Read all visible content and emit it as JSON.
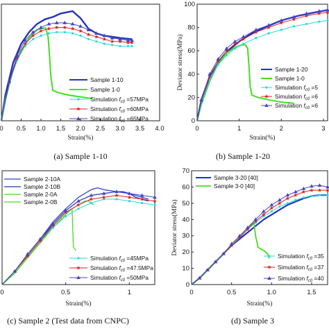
{
  "figure": {
    "colors": {
      "blue": "#2233bb",
      "blue2": "#3344cc",
      "green": "#44dd22",
      "cyan": "#22dddd",
      "red": "#dd2222",
      "violet": "#4444cc"
    }
  },
  "chart_data": [
    {
      "type": "line",
      "caption": "(a) Sample 1-10",
      "xlabel": "Strain(%)",
      "ylabel": "",
      "xlim": [
        0,
        4.0
      ],
      "ylim": [
        0,
        100
      ],
      "x_ticks": [
        "0",
        "0.5",
        "1.0",
        "1.5",
        "2.0",
        "2.5",
        "3.0",
        "3.5",
        "4.0"
      ],
      "y_ticks": [],
      "legend": "bottom-right",
      "series": [
        {
          "name": "Sample 1-10",
          "color": "#2233bb",
          "marker": "none",
          "width": 2.4,
          "x": [
            0,
            0.1,
            0.3,
            0.5,
            0.7,
            0.9,
            1.1,
            1.3,
            1.5,
            1.8,
            2.0,
            2.2,
            2.4,
            2.6,
            2.8,
            3.0,
            3.3
          ],
          "y": [
            0,
            22,
            50,
            66,
            76,
            83,
            87,
            89,
            92,
            94,
            88,
            79,
            75,
            73,
            72,
            71,
            70
          ]
        },
        {
          "name": "Sample 1-0",
          "color": "#44dd22",
          "marker": "none",
          "width": 2,
          "x": [
            0,
            0.1,
            0.3,
            0.5,
            0.7,
            0.9,
            1.0,
            1.12,
            1.18,
            1.22,
            1.25,
            1.3,
            1.45,
            1.7,
            2.0,
            2.3
          ],
          "y": [
            0,
            18,
            44,
            60,
            71,
            78,
            79,
            79.5,
            72,
            55,
            38,
            26,
            24,
            22,
            20.5,
            19
          ]
        },
        {
          "name": "Simulation f c0 =57MPa",
          "color": "#22dddd",
          "marker": "dot",
          "width": 1,
          "x": [
            0,
            0.2,
            0.4,
            0.6,
            0.8,
            1.0,
            1.2,
            1.4,
            1.6,
            1.8,
            2.0,
            2.2,
            2.4,
            2.6,
            2.8,
            3.0,
            3.2,
            3.3
          ],
          "y": [
            0,
            32,
            52,
            64,
            70,
            73,
            75,
            76,
            76,
            75,
            73,
            70,
            68,
            66,
            65,
            64,
            64,
            64
          ]
        },
        {
          "name": "Simulation f c0 =60MPa",
          "color": "#dd2222",
          "marker": "star",
          "width": 1,
          "x": [
            0,
            0.2,
            0.4,
            0.6,
            0.8,
            1.0,
            1.2,
            1.4,
            1.6,
            1.8,
            2.0,
            2.2,
            2.4,
            2.6,
            2.8,
            3.0,
            3.2,
            3.3
          ],
          "y": [
            0,
            33,
            54,
            66,
            73,
            77,
            79,
            80,
            80,
            79,
            77,
            74,
            72,
            70,
            68,
            68,
            67,
            67
          ]
        },
        {
          "name": "Simulation f c0 =65MPa",
          "color": "#4444cc",
          "marker": "triangle",
          "width": 1,
          "x": [
            0,
            0.2,
            0.4,
            0.6,
            0.8,
            1.0,
            1.2,
            1.4,
            1.6,
            1.8,
            2.0,
            2.2,
            2.4,
            2.6,
            2.8,
            3.0,
            3.2,
            3.3
          ],
          "y": [
            0,
            34,
            56,
            69,
            76,
            80,
            83,
            84,
            84,
            83,
            81,
            78,
            75,
            73,
            71,
            70,
            69,
            69
          ]
        }
      ]
    },
    {
      "type": "line",
      "caption": "(b) Sample 1-20",
      "xlabel": "Strain(%)",
      "ylabel": "Deviator stress(MPa)",
      "xlim": [
        0,
        3.1
      ],
      "ylim": [
        0,
        100
      ],
      "x_ticks": [
        "0",
        "1",
        "2",
        "3"
      ],
      "x_tick_values": [
        0,
        1,
        2,
        3
      ],
      "y_ticks": [
        "0",
        "20",
        "40",
        "60",
        "80",
        "100"
      ],
      "legend": "bottom-right",
      "series": [
        {
          "name": "Sample 1-20",
          "color": "#2233bb",
          "marker": "none",
          "width": 2.4,
          "x": [
            0,
            0.1,
            0.3,
            0.5,
            0.8,
            1.0,
            1.3,
            1.6,
            2.0,
            2.4,
            2.8,
            3.1
          ],
          "y": [
            0,
            18,
            38,
            50,
            62,
            68,
            75,
            80,
            86,
            90,
            93,
            95
          ]
        },
        {
          "name": "Sample 1-0",
          "color": "#44dd22",
          "marker": "none",
          "width": 2,
          "x": [
            0,
            0.1,
            0.3,
            0.5,
            0.7,
            0.9,
            1.05,
            1.15,
            1.2,
            1.23,
            1.26,
            1.3,
            1.45,
            1.7,
            2.0,
            2.3
          ],
          "y": [
            0,
            14,
            34,
            49,
            58,
            63,
            65,
            65,
            62,
            48,
            30,
            22,
            20,
            18,
            16,
            15
          ]
        },
        {
          "name": "Simulation f c0 =5",
          "color": "#22dddd",
          "marker": "dot",
          "width": 1,
          "x": [
            0,
            0.1,
            0.3,
            0.5,
            0.7,
            0.9,
            1.1,
            1.4,
            1.7,
            2.0,
            2.3,
            2.6,
            2.9,
            3.1
          ],
          "y": [
            0,
            15,
            35,
            48,
            56,
            62,
            66,
            71,
            75,
            78,
            81,
            83,
            85,
            86
          ]
        },
        {
          "name": "Simulation f c0 =6",
          "color": "#dd2222",
          "marker": "star",
          "width": 1,
          "x": [
            0,
            0.1,
            0.3,
            0.5,
            0.7,
            0.9,
            1.1,
            1.4,
            1.7,
            2.0,
            2.3,
            2.6,
            2.9,
            3.1
          ],
          "y": [
            0,
            17,
            38,
            51,
            60,
            66,
            70,
            76,
            80,
            84,
            87,
            90,
            92,
            93
          ]
        },
        {
          "name": "Simulation f c0 =6",
          "color": "#4444cc",
          "marker": "triangle",
          "width": 1,
          "x": [
            0,
            0.1,
            0.3,
            0.5,
            0.7,
            0.9,
            1.1,
            1.4,
            1.7,
            2.0,
            2.3,
            2.6,
            2.9,
            3.1
          ],
          "y": [
            0,
            18,
            40,
            53,
            62,
            68,
            72,
            78,
            82,
            86,
            89,
            92,
            94,
            95
          ]
        }
      ]
    },
    {
      "type": "line",
      "caption": "(c) Sample 2 (Test data from CNPC)",
      "xlabel": "Strain(%)",
      "ylabel": "",
      "xlim": [
        0,
        1.2
      ],
      "ylim": [
        0,
        60
      ],
      "x_ticks": [
        "0",
        "0.5",
        "1"
      ],
      "x_tick_values": [
        0,
        0.5,
        1.0
      ],
      "y_ticks": [],
      "legend": "top-left",
      "series": [
        {
          "name": "Sample 2-10A",
          "color": "#3344cc",
          "marker": "none",
          "width": 1.3,
          "x": [
            0,
            0.1,
            0.2,
            0.3,
            0.4,
            0.5,
            0.6,
            0.7,
            0.75,
            0.8,
            0.9,
            1.0,
            1.1,
            1.15
          ],
          "y": [
            0,
            7,
            16,
            24,
            33,
            40,
            46,
            50,
            51,
            50,
            49,
            48,
            46,
            45
          ]
        },
        {
          "name": "Sample 2-10B",
          "color": "#2233bb",
          "marker": "none",
          "width": 1.3,
          "x": [
            0,
            0.1,
            0.2,
            0.3,
            0.4,
            0.5,
            0.6,
            0.7,
            0.8,
            0.9,
            0.95,
            1.0,
            1.05,
            1.1,
            1.15
          ],
          "y": [
            0,
            7,
            15,
            23,
            32,
            39,
            44,
            47,
            48,
            49,
            49,
            48,
            46,
            45,
            44
          ]
        },
        {
          "name": "Sample 2-0A",
          "color": "#44dd22",
          "marker": "none",
          "width": 1.3,
          "x": [
            0,
            0.1,
            0.2,
            0.3,
            0.4,
            0.5,
            0.6,
            0.65,
            0.68,
            0.7,
            0.72
          ],
          "y": [
            0,
            7,
            15,
            23,
            31,
            38,
            42,
            44,
            44,
            43,
            42
          ]
        },
        {
          "name": "Sample 2-0B",
          "color": "#44dd22",
          "marker": "none",
          "width": 1.3,
          "x": [
            0,
            0.1,
            0.2,
            0.3,
            0.4,
            0.5,
            0.55,
            0.56,
            0.58
          ],
          "y": [
            0,
            6,
            14,
            22,
            30,
            37,
            40,
            20,
            18
          ]
        },
        {
          "name": "Simulation f c0 =45MPa",
          "color": "#22dddd",
          "marker": "dot",
          "width": 1,
          "x": [
            0,
            0.1,
            0.2,
            0.3,
            0.4,
            0.5,
            0.6,
            0.7,
            0.8,
            0.9,
            1.0,
            1.1,
            1.2
          ],
          "y": [
            0,
            7,
            15,
            23,
            30,
            36,
            40,
            43,
            45,
            45,
            44,
            43,
            42
          ]
        },
        {
          "name": "Simulation f c0 =47.5MPa",
          "color": "#dd2222",
          "marker": "star",
          "width": 1,
          "x": [
            0,
            0.1,
            0.2,
            0.3,
            0.4,
            0.5,
            0.6,
            0.7,
            0.8,
            0.9,
            1.0,
            1.1,
            1.2
          ],
          "y": [
            0,
            7,
            15,
            23,
            31,
            38,
            42,
            45,
            46,
            47,
            46,
            45,
            44
          ]
        },
        {
          "name": "Simulation f c0 =50MPa",
          "color": "#4444cc",
          "marker": "triangle",
          "width": 1,
          "x": [
            0,
            0.1,
            0.2,
            0.3,
            0.4,
            0.5,
            0.6,
            0.7,
            0.8,
            0.9,
            1.0,
            1.1,
            1.2
          ],
          "y": [
            0,
            7,
            16,
            24,
            32,
            39,
            44,
            47,
            48,
            49,
            48,
            47,
            46
          ]
        }
      ]
    },
    {
      "type": "line",
      "caption": "(d) Sample 3",
      "xlabel": "Strain(%)",
      "ylabel": "Deviator stress(MPa)",
      "xlim": [
        0,
        1.7
      ],
      "ylim": [
        0,
        70
      ],
      "x_ticks": [
        "0",
        "0.5",
        "1.0",
        "1.5"
      ],
      "x_tick_values": [
        0,
        0.5,
        1.0,
        1.5
      ],
      "y_ticks": [
        "0",
        "10",
        "20",
        "30",
        "40",
        "50",
        "60",
        "70"
      ],
      "legend": "top-left",
      "series": [
        {
          "name": "Sample 3-20 [40]",
          "color": "#2233bb",
          "marker": "none",
          "width": 2.2,
          "x": [
            0,
            0.1,
            0.2,
            0.3,
            0.4,
            0.5,
            0.6,
            0.7,
            0.8,
            0.9,
            1.0,
            1.1,
            1.2,
            1.3,
            1.4,
            1.5,
            1.6,
            1.7
          ],
          "y": [
            0,
            4,
            9,
            14,
            19,
            24,
            28,
            32,
            36,
            40,
            43,
            46,
            49,
            51,
            53,
            54.5,
            55,
            55
          ]
        },
        {
          "name": "Sample 3-0 [40]",
          "color": "#44dd22",
          "marker": "none",
          "width": 1.8,
          "x": [
            0,
            0.1,
            0.2,
            0.3,
            0.4,
            0.5,
            0.6,
            0.7,
            0.75,
            0.78,
            0.8,
            0.83,
            0.86,
            0.9,
            0.95,
            0.97
          ],
          "y": [
            0,
            4,
            9,
            14,
            19,
            24,
            29,
            34,
            37,
            38,
            30,
            23,
            22,
            21,
            19,
            16
          ]
        },
        {
          "name": "Simulation f c0 =35",
          "color": "#22dddd",
          "marker": "dot",
          "width": 1,
          "x": [
            0,
            0.1,
            0.2,
            0.3,
            0.4,
            0.5,
            0.6,
            0.7,
            0.8,
            0.9,
            1.0,
            1.1,
            1.2,
            1.3,
            1.4,
            1.5,
            1.6,
            1.7
          ],
          "y": [
            0,
            4,
            9,
            14,
            19,
            24,
            29,
            34,
            38,
            42,
            45,
            48,
            50,
            52,
            53.5,
            54.5,
            55,
            55
          ]
        },
        {
          "name": "Simulation f c0 =37",
          "color": "#dd2222",
          "marker": "star",
          "width": 1,
          "x": [
            0,
            0.1,
            0.2,
            0.3,
            0.4,
            0.5,
            0.6,
            0.7,
            0.8,
            0.9,
            1.0,
            1.1,
            1.2,
            1.3,
            1.4,
            1.5,
            1.6,
            1.7
          ],
          "y": [
            0,
            4,
            9,
            14,
            19,
            24,
            29,
            34,
            39,
            43,
            47,
            50,
            53,
            55,
            57,
            58,
            58,
            58
          ]
        },
        {
          "name": "Simulation f c0 =40",
          "color": "#4444cc",
          "marker": "triangle",
          "width": 1,
          "x": [
            0,
            0.1,
            0.2,
            0.3,
            0.4,
            0.5,
            0.6,
            0.7,
            0.8,
            0.9,
            1.0,
            1.1,
            1.2,
            1.3,
            1.4,
            1.5,
            1.6,
            1.7
          ],
          "y": [
            0,
            4,
            9,
            14,
            19,
            25,
            30,
            35,
            40,
            45,
            49,
            52,
            55,
            57,
            59,
            60.5,
            61,
            60
          ]
        }
      ]
    }
  ]
}
